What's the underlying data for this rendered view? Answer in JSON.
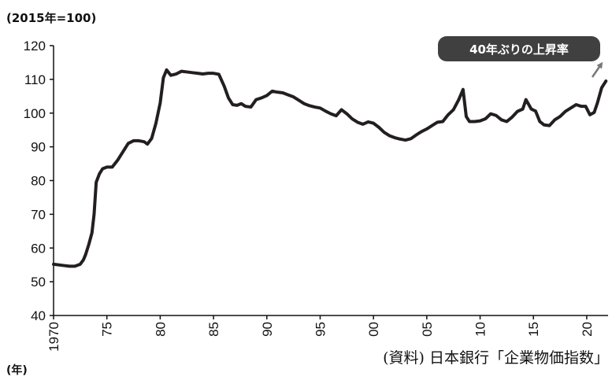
{
  "unit_label": "(2015年=100)",
  "x_unit_label": "(年)",
  "source": "(資料) 日本銀行「企業物価指数」",
  "annotation": "40年ぶりの上昇率",
  "colors": {
    "line": "#231f20",
    "badge": "#404040",
    "arrow": "#777777"
  },
  "chart_data": {
    "type": "line",
    "title": "",
    "xlabel": "(年)",
    "ylabel": "(2015年=100)",
    "ylim": [
      40,
      120
    ],
    "xlim": [
      1970,
      2022
    ],
    "grid": false,
    "yticks": [
      40,
      50,
      60,
      70,
      80,
      90,
      100,
      110,
      120
    ],
    "xticks": [
      {
        "value": 1970,
        "label": "1970"
      },
      {
        "value": 1975,
        "label": "75"
      },
      {
        "value": 1980,
        "label": "80"
      },
      {
        "value": 1985,
        "label": "85"
      },
      {
        "value": 1990,
        "label": "90"
      },
      {
        "value": 1995,
        "label": "95"
      },
      {
        "value": 2000,
        "label": "00"
      },
      {
        "value": 2005,
        "label": "05"
      },
      {
        "value": 2010,
        "label": "10"
      },
      {
        "value": 2015,
        "label": "15"
      },
      {
        "value": 2020,
        "label": "20"
      }
    ],
    "series": [
      {
        "x": [
          1970.0,
          1970.5,
          1971.0,
          1971.5,
          1972.0,
          1972.5,
          1972.8,
          1973.0,
          1973.3,
          1973.6,
          1973.8,
          1974.0,
          1974.3,
          1974.6,
          1975.0,
          1975.5,
          1976.0,
          1976.5,
          1977.0,
          1977.5,
          1978.0,
          1978.5,
          1978.8,
          1979.2,
          1979.6,
          1980.0,
          1980.3,
          1980.6,
          1981.0,
          1981.5,
          1982.0,
          1982.5,
          1983.0,
          1983.5,
          1984.0,
          1984.5,
          1985.0,
          1985.5,
          1986.0,
          1986.4,
          1986.8,
          1987.2,
          1987.6,
          1988.0,
          1988.5,
          1989.0,
          1989.5,
          1990.0,
          1990.5,
          1991.0,
          1991.5,
          1992.0,
          1992.5,
          1993.0,
          1993.5,
          1994.0,
          1994.5,
          1995.0,
          1995.5,
          1996.0,
          1996.5,
          1997.0,
          1997.5,
          1998.0,
          1998.5,
          1999.0,
          1999.5,
          2000.0,
          2000.5,
          2001.0,
          2001.5,
          2002.0,
          2002.5,
          2003.0,
          2003.5,
          2004.0,
          2004.5,
          2005.0,
          2005.5,
          2006.0,
          2006.5,
          2007.0,
          2007.5,
          2008.0,
          2008.4,
          2008.7,
          2009.0,
          2009.5,
          2010.0,
          2010.5,
          2011.0,
          2011.5,
          2012.0,
          2012.5,
          2013.0,
          2013.5,
          2014.0,
          2014.3,
          2014.8,
          2015.2,
          2015.6,
          2016.0,
          2016.5,
          2017.0,
          2017.5,
          2018.0,
          2018.5,
          2019.0,
          2019.5,
          2019.9,
          2020.3,
          2020.7,
          2021.0,
          2021.4,
          2021.8
        ],
        "values": [
          55.2,
          55.0,
          54.8,
          54.6,
          54.6,
          55.2,
          56.5,
          58.0,
          61.0,
          64.5,
          70.0,
          79.5,
          82.0,
          83.5,
          84.0,
          84.0,
          86.0,
          88.5,
          91.0,
          91.8,
          91.8,
          91.5,
          90.8,
          92.5,
          97.0,
          103.0,
          110.5,
          112.8,
          111.2,
          111.6,
          112.4,
          112.2,
          112.0,
          111.8,
          111.6,
          111.8,
          111.8,
          111.5,
          108.0,
          104.5,
          102.5,
          102.3,
          102.8,
          102.0,
          101.8,
          104.0,
          104.5,
          105.2,
          106.5,
          106.2,
          106.0,
          105.4,
          104.8,
          103.8,
          102.8,
          102.2,
          101.8,
          101.5,
          100.6,
          99.8,
          99.2,
          101.0,
          99.8,
          98.3,
          97.3,
          96.7,
          97.4,
          97.0,
          95.8,
          94.3,
          93.3,
          92.7,
          92.3,
          92.0,
          92.4,
          93.5,
          94.5,
          95.3,
          96.3,
          97.3,
          97.5,
          99.5,
          101.0,
          104.0,
          107.0,
          99.0,
          97.5,
          97.5,
          97.7,
          98.3,
          99.8,
          99.3,
          98.0,
          97.5,
          98.8,
          100.5,
          101.2,
          104.0,
          101.2,
          100.6,
          97.5,
          96.5,
          96.3,
          98.0,
          99.0,
          100.5,
          101.5,
          102.5,
          102.0,
          102.0,
          99.5,
          100.2,
          103.0,
          107.5,
          109.5
        ]
      }
    ]
  }
}
